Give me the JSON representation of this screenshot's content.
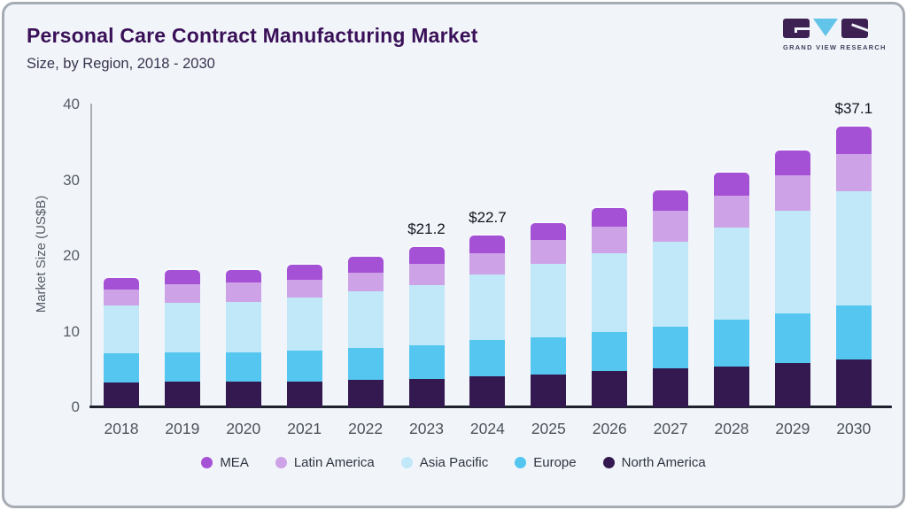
{
  "header": {
    "title": "Personal Care Contract Manufacturing Market",
    "subtitle": "Size, by Region, 2018 - 2030"
  },
  "logo": {
    "text": "GRAND VIEW RESEARCH"
  },
  "colors": {
    "background": "#f1f5f9",
    "title": "#3a1058",
    "subtitle": "#38324e",
    "axis_text": "#565c66",
    "y_axis_line": "#a8aeb6",
    "x_axis_line": "#1d222e",
    "logo_block": "#3d2152",
    "logo_triangle": "#62c4e8",
    "logo_text": "#43405c"
  },
  "chart_data": {
    "type": "bar",
    "stacked": true,
    "title": "Personal Care Contract Manufacturing Market",
    "subtitle": "Size, by Region, 2018 - 2030",
    "ylabel": "Market Size (US$B)",
    "ylim": [
      0,
      40
    ],
    "yticks": [
      0,
      10,
      20,
      30,
      40
    ],
    "grid": false,
    "legend_position": "bottom",
    "categories": [
      "2018",
      "2019",
      "2020",
      "2021",
      "2022",
      "2023",
      "2024",
      "2025",
      "2026",
      "2027",
      "2028",
      "2029",
      "2030"
    ],
    "series": [
      {
        "name": "North America",
        "color": "#33194f",
        "values": [
          3.3,
          3.4,
          3.4,
          3.4,
          3.6,
          3.8,
          4.1,
          4.3,
          4.8,
          5.2,
          5.4,
          5.8,
          6.3
        ]
      },
      {
        "name": "Europe",
        "color": "#54c6f0",
        "values": [
          3.8,
          3.9,
          3.9,
          4.1,
          4.2,
          4.4,
          4.8,
          5.0,
          5.2,
          5.5,
          6.2,
          6.6,
          7.1
        ]
      },
      {
        "name": "Asia Pacific",
        "color": "#c0e8f8",
        "values": [
          6.3,
          6.5,
          6.6,
          7.0,
          7.5,
          8.0,
          8.6,
          9.6,
          10.3,
          11.2,
          12.2,
          13.6,
          15.1
        ]
      },
      {
        "name": "Latin America",
        "color": "#cda2e6",
        "values": [
          2.1,
          2.5,
          2.6,
          2.4,
          2.5,
          2.8,
          2.9,
          3.2,
          3.6,
          4.1,
          4.2,
          4.7,
          5.0
        ]
      },
      {
        "name": "MEA",
        "color": "#a551d5",
        "values": [
          1.6,
          1.8,
          1.6,
          1.9,
          2.1,
          2.2,
          2.3,
          2.2,
          2.4,
          2.6,
          3.0,
          3.2,
          3.6
        ]
      }
    ],
    "totals": [
      17.1,
      18.1,
      18.1,
      18.8,
      19.9,
      21.2,
      22.7,
      24.3,
      26.3,
      28.6,
      31.0,
      33.9,
      37.1
    ],
    "value_labels": {
      "2023": "$21.2",
      "2024": "$22.7",
      "2030": "$37.1"
    },
    "legend": [
      "MEA",
      "Latin America",
      "Asia Pacific",
      "Europe",
      "North America"
    ]
  }
}
